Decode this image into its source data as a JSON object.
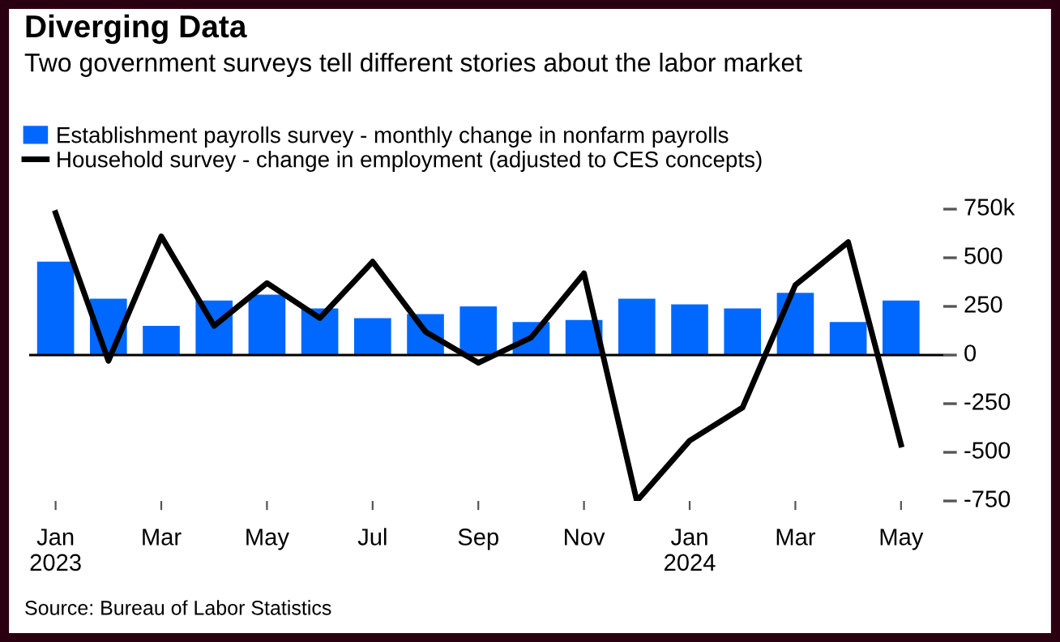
{
  "chart_data": {
    "type": "bar",
    "title": "Diverging Data",
    "subtitle": "Two government surveys tell different stories about the labor market",
    "categories": [
      "Jan\n2023",
      null,
      "Mar",
      null,
      "May",
      null,
      "Jul",
      null,
      "Sep",
      null,
      "Nov",
      null,
      "Jan\n2024",
      null,
      "Mar",
      null,
      "May"
    ],
    "series": [
      {
        "name": "Establishment payrolls survey - monthly change in nonfarm payrolls",
        "color": "#0068ff",
        "values": [
          480,
          290,
          150,
          280,
          310,
          240,
          190,
          210,
          250,
          170,
          180,
          290,
          260,
          240,
          320,
          170,
          280
        ]
      },
      {
        "name": "Household survey - change in employment (adjusted to CES concepts)",
        "type": "line",
        "color": "#000000",
        "values": [
          730,
          -30,
          610,
          150,
          370,
          190,
          480,
          120,
          -40,
          90,
          420,
          -750,
          -440,
          -270,
          360,
          580,
          -460
        ]
      }
    ],
    "ylim": [
      -750,
      750
    ],
    "yticks": [
      {
        "value": 750,
        "label": "750k"
      },
      500,
      250,
      0,
      -250,
      -500,
      -750
    ],
    "ref_lines": [
      {
        "axis": "y",
        "value": 0,
        "color": "#000000"
      }
    ],
    "grid": false,
    "legend": "top left",
    "annotations": [
      "Source: Bureau of Labor Statistics"
    ]
  }
}
